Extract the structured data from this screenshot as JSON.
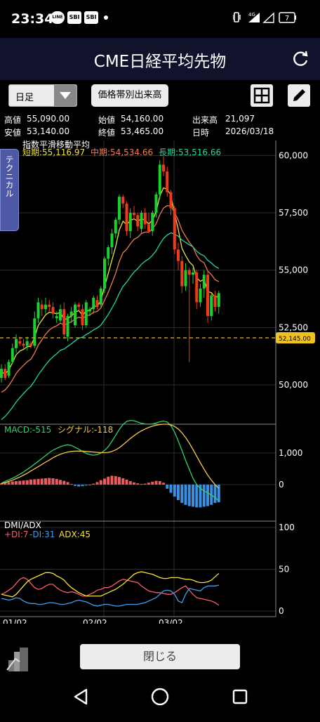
{
  "status": {
    "time": "23:34",
    "icons": [
      "LINE",
      "SBI",
      "SBI"
    ],
    "network": "4G",
    "battery": "7"
  },
  "header": {
    "title": "CME日経平均先物"
  },
  "toolbar": {
    "period": "日足",
    "range_button": "価格帯別出来高"
  },
  "ohlc": {
    "high_label": "高値",
    "high": "55,090.00",
    "open_label": "始値",
    "open": "54,160.00",
    "volume_label": "出来高",
    "volume": "21,097",
    "low_label": "安値",
    "low": "53,140.00",
    "close_label": "終値",
    "close": "53,465.00",
    "date_label": "日時",
    "date": "2026/03/18"
  },
  "sidebar": {
    "technical_tab": "テクニカル"
  },
  "footer": {
    "close_button": "閉じる"
  },
  "chart_data": [
    {
      "type": "candlestick",
      "title": "指数平滑移動平均",
      "legend": [
        {
          "label": "短期:55,116.97",
          "color": "#f0e040"
        },
        {
          "label": "中期:54,534.66",
          "color": "#f07a52"
        },
        {
          "label": "長期:53,516.66",
          "color": "#20d6a0"
        }
      ],
      "ylim": [
        48500,
        61000
      ],
      "yticks": [
        "60,000",
        "57,500",
        "55,000",
        "52,500",
        "50,000"
      ],
      "ref_line": {
        "value": 52145,
        "label": "52,145.00",
        "color": "#f2c21b"
      },
      "candles": [
        [
          50300,
          50900,
          50100,
          50700
        ],
        [
          50700,
          50900,
          50200,
          50300
        ],
        [
          50400,
          51100,
          50300,
          51000
        ],
        [
          51000,
          51800,
          50900,
          51600
        ],
        [
          51600,
          52200,
          51400,
          52000
        ],
        [
          51900,
          52100,
          51700,
          51800
        ],
        [
          51800,
          52000,
          51600,
          51700
        ],
        [
          51700,
          52100,
          51500,
          51900
        ],
        [
          51800,
          51900,
          51600,
          51700
        ],
        [
          51700,
          53200,
          51600,
          52900
        ],
        [
          52900,
          53800,
          52700,
          53600
        ],
        [
          53500,
          53700,
          53000,
          53300
        ],
        [
          53300,
          53800,
          53100,
          53500
        ],
        [
          53500,
          53700,
          53200,
          53400
        ],
        [
          53400,
          53600,
          52900,
          53100
        ],
        [
          52900,
          53200,
          52700,
          53000
        ],
        [
          52800,
          53500,
          52700,
          53300
        ],
        [
          53300,
          53600,
          52000,
          52200
        ],
        [
          52100,
          53100,
          51900,
          53000
        ],
        [
          53000,
          53400,
          52700,
          53200
        ],
        [
          52600,
          53600,
          52500,
          53500
        ],
        [
          53500,
          53600,
          53200,
          53400
        ],
        [
          53300,
          53500,
          52400,
          52600
        ],
        [
          52600,
          53700,
          52500,
          53600
        ],
        [
          53200,
          53400,
          53000,
          53300
        ],
        [
          53300,
          53900,
          53100,
          53800
        ],
        [
          53700,
          53900,
          53300,
          53400
        ],
        [
          53500,
          54300,
          53400,
          54200
        ],
        [
          54200,
          55600,
          54000,
          55500
        ],
        [
          55500,
          56100,
          55200,
          56000
        ],
        [
          56000,
          56800,
          55700,
          56600
        ],
        [
          56600,
          57300,
          56400,
          57200
        ],
        [
          57200,
          58300,
          57000,
          58200
        ],
        [
          58200,
          58300,
          57700,
          57900
        ],
        [
          57900,
          58000,
          56500,
          56700
        ],
        [
          56700,
          57700,
          56400,
          57500
        ],
        [
          57500,
          57800,
          57200,
          57400
        ],
        [
          57400,
          57500,
          56700,
          56900
        ],
        [
          56800,
          57600,
          56600,
          57500
        ],
        [
          57500,
          57700,
          56800,
          57000
        ],
        [
          57000,
          57500,
          56600,
          56700
        ],
        [
          56700,
          57600,
          56500,
          57500
        ],
        [
          57500,
          58400,
          57300,
          58300
        ],
        [
          58300,
          59800,
          58100,
          59600
        ],
        [
          59600,
          60000,
          59100,
          59300
        ],
        [
          59300,
          59500,
          58200,
          58400
        ],
        [
          58400,
          58500,
          57400,
          57700
        ],
        [
          57700,
          57800,
          55700,
          55900
        ],
        [
          55900,
          56200,
          55000,
          55400
        ],
        [
          55400,
          55600,
          54000,
          54300
        ],
        [
          54300,
          55300,
          54100,
          55000
        ],
        [
          55000,
          55100,
          51000,
          54800
        ],
        [
          54800,
          55100,
          54400,
          54900
        ],
        [
          54900,
          55000,
          53300,
          53600
        ],
        [
          53600,
          54400,
          53400,
          54200
        ],
        [
          54200,
          55000,
          53800,
          54800
        ],
        [
          54800,
          55000,
          52700,
          53000
        ],
        [
          53000,
          54000,
          52800,
          53900
        ],
        [
          53900,
          54100,
          53200,
          53400
        ],
        [
          53400,
          54100,
          53100,
          54000
        ]
      ]
    },
    {
      "type": "line",
      "title": "MACD",
      "legend": [
        {
          "label": "MACD:-515",
          "color": "#2fd36a"
        },
        {
          "label": "シグナル:-118",
          "color": "#f0c84a"
        }
      ],
      "ylim": [
        -1300,
        2000
      ],
      "yticks": [
        "1,000",
        "0"
      ],
      "macd": [
        50,
        100,
        150,
        200,
        260,
        330,
        400,
        480,
        560,
        650,
        740,
        830,
        920,
        1010,
        1090,
        1150,
        1200,
        1240,
        1260,
        1240,
        1180,
        1120,
        1050,
        990,
        950,
        930,
        950,
        1000,
        1080,
        1200,
        1370,
        1560,
        1750,
        1900,
        2000,
        2030,
        2020,
        1980,
        1940,
        1920,
        1910,
        1920,
        1950,
        1990,
        2010,
        1980,
        1870,
        1660,
        1380,
        1080,
        770,
        480,
        200,
        0,
        -120,
        -200,
        -260,
        -330,
        -410,
        -515
      ],
      "signal": [
        30,
        60,
        100,
        140,
        190,
        240,
        300,
        360,
        430,
        500,
        570,
        640,
        710,
        780,
        850,
        910,
        960,
        1000,
        1030,
        1050,
        1060,
        1060,
        1060,
        1050,
        1040,
        1030,
        1020,
        1010,
        1010,
        1020,
        1050,
        1100,
        1170,
        1260,
        1360,
        1460,
        1550,
        1630,
        1700,
        1760,
        1810,
        1850,
        1880,
        1900,
        1910,
        1910,
        1890,
        1840,
        1760,
        1640,
        1490,
        1310,
        1110,
        900,
        690,
        490,
        300,
        140,
        0,
        -118
      ],
      "histogram": [
        40,
        60,
        80,
        100,
        110,
        120,
        130,
        140,
        160,
        170,
        180,
        190,
        200,
        210,
        200,
        180,
        150,
        120,
        80,
        20,
        -40,
        -60,
        -50,
        -30,
        0,
        30,
        80,
        140,
        190,
        250,
        280,
        270,
        240,
        200,
        160,
        110,
        70,
        40,
        20,
        30,
        60,
        90,
        120,
        110,
        60,
        -130,
        -260,
        -380,
        -490,
        -580,
        -640,
        -680,
        -700,
        -720,
        -720,
        -700,
        -680,
        -640,
        -580,
        -560
      ]
    },
    {
      "type": "line",
      "title": "DMI/ADX",
      "legend": [
        {
          "label": "+DI:7",
          "color": "#ff5a6a"
        },
        {
          "label": "-DI:31",
          "color": "#3fa0f0"
        },
        {
          "label": "ADX:45",
          "color": "#f5e23a"
        }
      ],
      "ylim": [
        0,
        105
      ],
      "yticks": [
        "100",
        "50",
        "0"
      ],
      "plus_di": [
        20,
        22,
        25,
        28,
        33,
        38,
        40,
        38,
        33,
        28,
        26,
        27,
        30,
        32,
        32,
        28,
        25,
        23,
        22,
        23,
        22,
        20,
        18,
        18,
        20,
        22,
        25,
        26,
        28,
        28,
        30,
        33,
        36,
        38,
        37,
        36,
        35,
        34,
        30,
        27,
        24,
        23,
        22,
        22,
        21,
        20,
        20,
        22,
        25,
        28,
        30,
        25,
        20,
        16,
        15,
        14,
        13,
        12,
        10,
        7
      ],
      "minus_di": [
        15,
        14,
        13,
        14,
        16,
        15,
        12,
        10,
        9,
        9,
        8,
        8,
        9,
        10,
        10,
        9,
        8,
        8,
        9,
        10,
        12,
        13,
        12,
        11,
        9,
        7,
        6,
        7,
        8,
        8,
        7,
        6,
        6,
        7,
        8,
        8,
        8,
        8,
        9,
        10,
        12,
        14,
        16,
        20,
        24,
        25,
        24,
        20,
        12,
        10,
        20,
        27,
        26,
        25,
        24,
        28,
        30,
        30,
        30,
        31
      ],
      "adx": [
        20,
        19,
        18,
        17,
        20,
        25,
        30,
        35,
        38,
        40,
        42,
        44,
        46,
        46,
        45,
        42,
        40,
        37,
        32,
        28,
        25,
        22,
        20,
        18,
        18,
        18,
        18,
        18,
        20,
        22,
        24,
        26,
        29,
        32,
        36,
        40,
        44,
        46,
        47,
        46,
        45,
        44,
        42,
        40,
        39,
        39,
        40,
        40,
        40,
        39,
        38,
        38,
        37,
        35,
        34,
        34,
        35,
        37,
        41,
        45
      ]
    }
  ],
  "x_axis": {
    "labels": [
      "01/02",
      "02/02",
      "03/02"
    ]
  }
}
